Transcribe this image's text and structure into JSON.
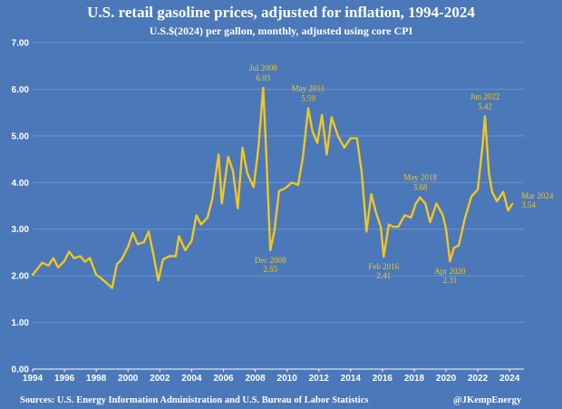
{
  "title": "U.S. retail gasoline prices, adjusted for inflation, 1994-2024",
  "subtitle": "U.S.$(2024) per gallon, monthly, adjusted using core CPI",
  "footer": {
    "source": "Sources: U.S. Energy Information Administration and U.S. Bureau of Labor Statistics",
    "credit": "@JKempEnergy"
  },
  "colors": {
    "background": "#4a78b8",
    "line": "#f2c61f",
    "grid": "#6f94cc",
    "text": "#ffffff"
  },
  "chart_data": {
    "type": "line",
    "title": "U.S. retail gasoline prices, adjusted for inflation, 1994-2024",
    "xlabel": "",
    "ylabel": "",
    "xlim": [
      1994,
      2024.9
    ],
    "ylim": [
      0,
      7
    ],
    "grid": "horizontal",
    "legend": "none",
    "y_ticks": [
      "0.00",
      "1.00",
      "2.00",
      "3.00",
      "4.00",
      "5.00",
      "6.00",
      "7.00"
    ],
    "x_ticks": [
      "1994",
      "1996",
      "1998",
      "2000",
      "2002",
      "2004",
      "2006",
      "2008",
      "2010",
      "2012",
      "2014",
      "2016",
      "2018",
      "2020",
      "2022",
      "2024"
    ],
    "series": [
      {
        "color": "#f2c61f",
        "x": [
          1994.0,
          1994.3,
          1994.6,
          1995.0,
          1995.3,
          1995.6,
          1996.0,
          1996.3,
          1996.6,
          1997.0,
          1997.3,
          1997.6,
          1998.0,
          1998.3,
          1998.6,
          1999.0,
          1999.3,
          1999.6,
          2000.0,
          2000.3,
          2000.6,
          2001.0,
          2001.3,
          2001.6,
          2001.9,
          2002.2,
          2002.6,
          2003.0,
          2003.2,
          2003.6,
          2004.0,
          2004.3,
          2004.6,
          2005.0,
          2005.3,
          2005.7,
          2005.9,
          2006.3,
          2006.6,
          2006.9,
          2007.2,
          2007.5,
          2007.9,
          2008.2,
          2008.5,
          2008.7,
          2008.95,
          2009.2,
          2009.5,
          2009.9,
          2010.3,
          2010.7,
          2011.0,
          2011.33,
          2011.6,
          2011.9,
          2012.2,
          2012.5,
          2012.8,
          2013.2,
          2013.6,
          2014.0,
          2014.4,
          2014.7,
          2015.0,
          2015.3,
          2015.6,
          2015.9,
          2016.08,
          2016.4,
          2016.7,
          2017.0,
          2017.4,
          2017.8,
          2018.1,
          2018.37,
          2018.7,
          2019.0,
          2019.4,
          2019.8,
          2020.0,
          2020.25,
          2020.5,
          2020.8,
          2021.2,
          2021.6,
          2022.0,
          2022.3,
          2022.45,
          2022.7,
          2022.9,
          2023.2,
          2023.6,
          2023.9,
          2024.17
        ],
        "y": [
          2.02,
          2.15,
          2.28,
          2.22,
          2.38,
          2.18,
          2.32,
          2.52,
          2.38,
          2.42,
          2.3,
          2.38,
          2.02,
          1.95,
          1.86,
          1.74,
          2.25,
          2.35,
          2.62,
          2.92,
          2.68,
          2.72,
          2.95,
          2.45,
          1.9,
          2.35,
          2.42,
          2.42,
          2.85,
          2.55,
          2.75,
          3.3,
          3.1,
          3.25,
          3.65,
          4.6,
          3.55,
          4.55,
          4.25,
          3.45,
          4.75,
          4.2,
          3.9,
          4.75,
          6.03,
          4.6,
          2.55,
          2.95,
          3.82,
          3.88,
          4.0,
          3.95,
          4.55,
          5.59,
          5.1,
          4.85,
          5.45,
          4.6,
          5.4,
          5.0,
          4.75,
          4.95,
          4.95,
          4.2,
          2.95,
          3.75,
          3.35,
          3.05,
          2.41,
          3.1,
          3.05,
          3.05,
          3.3,
          3.25,
          3.55,
          3.68,
          3.55,
          3.15,
          3.55,
          3.3,
          3.0,
          2.31,
          2.6,
          2.65,
          3.25,
          3.7,
          3.85,
          4.8,
          5.42,
          4.2,
          3.8,
          3.6,
          3.8,
          3.4,
          3.54
        ]
      }
    ],
    "annotations": [
      {
        "x": 2008.5,
        "y": 6.03,
        "label": "Jul 2008",
        "value": "6.03",
        "position": "above"
      },
      {
        "x": 2008.95,
        "y": 2.55,
        "label": "Dec 2008",
        "value": "2.55",
        "position": "below"
      },
      {
        "x": 2011.33,
        "y": 5.59,
        "label": "May 2011",
        "value": "5.59",
        "position": "above"
      },
      {
        "x": 2016.08,
        "y": 2.41,
        "label": "Feb 2016",
        "value": "2.41",
        "position": "below"
      },
      {
        "x": 2018.37,
        "y": 3.68,
        "label": "May 2018",
        "value": "3.68",
        "position": "above"
      },
      {
        "x": 2020.25,
        "y": 2.31,
        "label": "Apr 2020",
        "value": "2.31",
        "position": "below"
      },
      {
        "x": 2022.45,
        "y": 5.42,
        "label": "Jun 2022",
        "value": "5.42",
        "position": "above"
      },
      {
        "x": 2024.17,
        "y": 3.54,
        "label": "Mar 2024",
        "value": "3.54",
        "position": "right"
      }
    ]
  }
}
